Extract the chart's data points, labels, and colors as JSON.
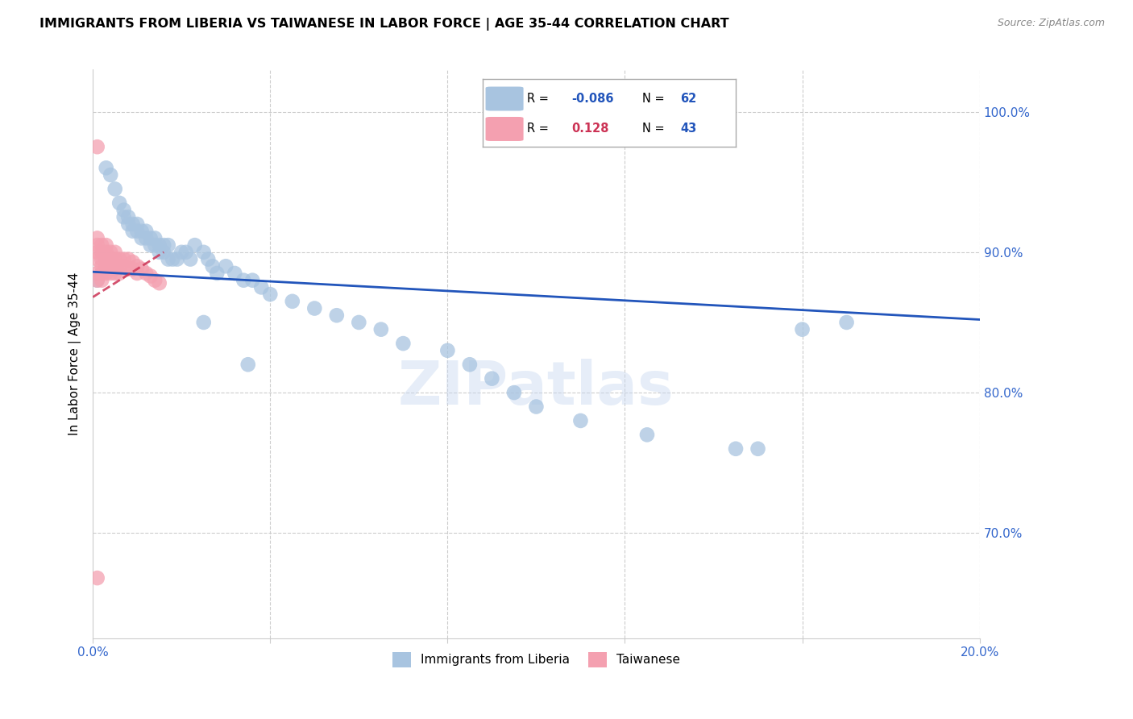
{
  "title": "IMMIGRANTS FROM LIBERIA VS TAIWANESE IN LABOR FORCE | AGE 35-44 CORRELATION CHART",
  "source": "Source: ZipAtlas.com",
  "ylabel": "In Labor Force | Age 35-44",
  "xlim": [
    0.0,
    0.2
  ],
  "ylim": [
    0.625,
    1.03
  ],
  "xticks": [
    0.0,
    0.04,
    0.08,
    0.12,
    0.16,
    0.2
  ],
  "yticks_right": [
    0.7,
    0.8,
    0.9,
    1.0
  ],
  "ytick_labels_right": [
    "70.0%",
    "80.0%",
    "90.0%",
    "100.0%"
  ],
  "legend_blue_r": "-0.086",
  "legend_blue_n": "62",
  "legend_pink_r": "0.128",
  "legend_pink_n": "43",
  "legend_label_blue": "Immigrants from Liberia",
  "legend_label_pink": "Taiwanese",
  "blue_color": "#a8c4e0",
  "pink_color": "#f4a0b0",
  "trend_blue_color": "#2255bb",
  "trend_pink_color": "#cc3355",
  "watermark": "ZIPatlas",
  "title_fontsize": 11.5,
  "axis_label_fontsize": 11,
  "tick_fontsize": 11,
  "blue_scatter_x": [
    0.001,
    0.003,
    0.004,
    0.005,
    0.006,
    0.007,
    0.007,
    0.008,
    0.008,
    0.009,
    0.009,
    0.01,
    0.01,
    0.011,
    0.011,
    0.012,
    0.012,
    0.013,
    0.013,
    0.014,
    0.014,
    0.015,
    0.015,
    0.016,
    0.016,
    0.017,
    0.017,
    0.018,
    0.019,
    0.02,
    0.021,
    0.022,
    0.023,
    0.025,
    0.026,
    0.027,
    0.028,
    0.03,
    0.032,
    0.034,
    0.036,
    0.038,
    0.04,
    0.045,
    0.05,
    0.055,
    0.06,
    0.065,
    0.07,
    0.08,
    0.085,
    0.09,
    0.095,
    0.1,
    0.11,
    0.125,
    0.145,
    0.16,
    0.17,
    0.15,
    0.035,
    0.025
  ],
  "blue_scatter_y": [
    0.88,
    0.96,
    0.955,
    0.945,
    0.935,
    0.93,
    0.925,
    0.925,
    0.92,
    0.92,
    0.915,
    0.92,
    0.915,
    0.915,
    0.91,
    0.915,
    0.91,
    0.91,
    0.905,
    0.91,
    0.905,
    0.905,
    0.9,
    0.905,
    0.9,
    0.905,
    0.895,
    0.895,
    0.895,
    0.9,
    0.9,
    0.895,
    0.905,
    0.9,
    0.895,
    0.89,
    0.885,
    0.89,
    0.885,
    0.88,
    0.88,
    0.875,
    0.87,
    0.865,
    0.86,
    0.855,
    0.85,
    0.845,
    0.835,
    0.83,
    0.82,
    0.81,
    0.8,
    0.79,
    0.78,
    0.77,
    0.76,
    0.845,
    0.85,
    0.76,
    0.82,
    0.85
  ],
  "pink_scatter_x": [
    0.001,
    0.001,
    0.001,
    0.001,
    0.001,
    0.001,
    0.001,
    0.002,
    0.002,
    0.002,
    0.002,
    0.002,
    0.002,
    0.003,
    0.003,
    0.003,
    0.003,
    0.003,
    0.004,
    0.004,
    0.004,
    0.004,
    0.005,
    0.005,
    0.005,
    0.005,
    0.006,
    0.006,
    0.006,
    0.007,
    0.007,
    0.008,
    0.008,
    0.009,
    0.009,
    0.01,
    0.01,
    0.011,
    0.012,
    0.013,
    0.014,
    0.015,
    0.001
  ],
  "pink_scatter_y": [
    0.975,
    0.91,
    0.905,
    0.9,
    0.895,
    0.885,
    0.88,
    0.905,
    0.9,
    0.895,
    0.89,
    0.885,
    0.88,
    0.905,
    0.9,
    0.895,
    0.89,
    0.885,
    0.9,
    0.895,
    0.89,
    0.885,
    0.9,
    0.895,
    0.89,
    0.885,
    0.895,
    0.89,
    0.885,
    0.895,
    0.89,
    0.895,
    0.888,
    0.893,
    0.888,
    0.89,
    0.885,
    0.888,
    0.885,
    0.883,
    0.88,
    0.878,
    0.668
  ]
}
